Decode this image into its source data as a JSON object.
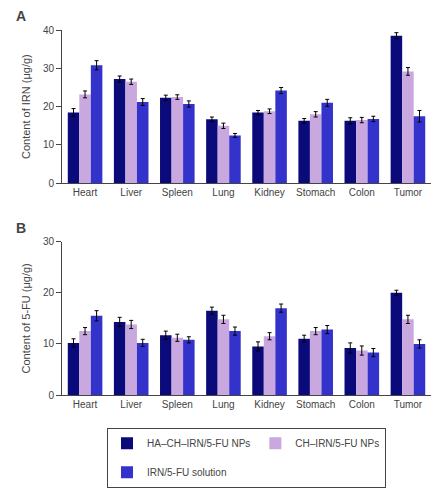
{
  "chart_data": [
    {
      "type": "bar",
      "title": "A",
      "categories": [
        "Heart",
        "Liver",
        "Spleen",
        "Lung",
        "Kidney",
        "Stomach",
        "Colon",
        "Tumor"
      ],
      "y_label": "Content of IRN (μg/g)",
      "ylim": [
        0,
        40
      ],
      "yticks": [
        0,
        10,
        20,
        30,
        40
      ],
      "grid": false,
      "legend": "bottom",
      "series": [
        {
          "name": "HA–CH–IRN/5-FU NPs",
          "color": "#0A0A7A",
          "values": [
            18.5,
            27.2,
            22.3,
            16.7,
            18.5,
            16.3,
            16.3,
            38.5
          ],
          "errors": [
            1.0,
            0.8,
            0.7,
            0.6,
            0.5,
            0.6,
            0.8,
            0.8
          ]
        },
        {
          "name": "CH–IRN/5-FU NPs",
          "color": "#C9A8E0",
          "values": [
            23.2,
            26.5,
            22.5,
            15.0,
            18.8,
            18.0,
            16.5,
            29.2
          ],
          "errors": [
            0.9,
            0.7,
            0.6,
            0.7,
            0.6,
            0.7,
            0.7,
            1.0
          ]
        },
        {
          "name": "IRN/5-FU solution",
          "color": "#3333CC",
          "values": [
            30.8,
            21.2,
            20.7,
            12.5,
            24.2,
            21.0,
            16.8,
            17.5
          ],
          "errors": [
            1.2,
            0.9,
            0.8,
            0.5,
            0.8,
            0.9,
            0.7,
            1.5
          ]
        }
      ]
    },
    {
      "type": "bar",
      "title": "B",
      "categories": [
        "Heart",
        "Liver",
        "Spleen",
        "Lung",
        "Kidney",
        "Stomach",
        "Colon",
        "Tumor"
      ],
      "y_label": "Content of 5-FU (μg/g)",
      "ylim": [
        0,
        30
      ],
      "yticks": [
        0,
        10,
        20,
        30
      ],
      "grid": false,
      "legend": "bottom",
      "series": [
        {
          "name": "HA–CH–IRN/5-FU NPs",
          "color": "#0A0A7A",
          "values": [
            10.2,
            14.3,
            11.7,
            16.5,
            9.5,
            11.0,
            9.2,
            20.0
          ],
          "errors": [
            0.8,
            0.9,
            0.8,
            0.7,
            0.9,
            0.7,
            1.0,
            0.5
          ]
        },
        {
          "name": "CH–IRN/5-FU NPs",
          "color": "#C9A8E0",
          "values": [
            12.5,
            13.8,
            11.2,
            14.8,
            11.5,
            12.5,
            8.7,
            14.8
          ],
          "errors": [
            0.7,
            0.8,
            0.7,
            0.8,
            0.7,
            0.7,
            0.9,
            0.8
          ]
        },
        {
          "name": "IRN/5-FU solution",
          "color": "#3333CC",
          "values": [
            15.5,
            10.2,
            10.8,
            12.5,
            17.0,
            12.8,
            8.3,
            10.0
          ],
          "errors": [
            1.0,
            0.7,
            0.6,
            0.8,
            0.8,
            0.8,
            0.8,
            0.8
          ]
        }
      ]
    }
  ]
}
